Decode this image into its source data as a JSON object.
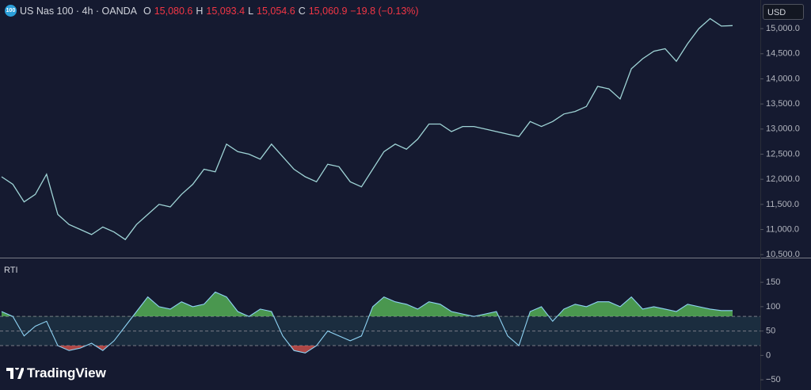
{
  "header": {
    "badge": "100",
    "symbol": "US Nas 100 · 4h · OANDA",
    "open_label": "O",
    "open": "15,080.6",
    "high_label": "H",
    "high": "15,093.4",
    "low_label": "L",
    "low": "15,054.6",
    "close_label": "C",
    "close": "15,060.9",
    "change": "−19.8 (−0.13%)",
    "currency": "USD"
  },
  "branding": {
    "logo": "TradingView"
  },
  "chart_data": [
    {
      "type": "line",
      "color": "#9fd4d6",
      "values": [
        12050,
        11900,
        11550,
        11700,
        12100,
        11300,
        11100,
        11000,
        10900,
        11050,
        10950,
        10800,
        11100,
        11300,
        11500,
        11450,
        11700,
        11900,
        12200,
        12150,
        12700,
        12550,
        12500,
        12400,
        12700,
        12450,
        12200,
        12050,
        11950,
        12300,
        12250,
        11950,
        11850,
        12200,
        12550,
        12700,
        12600,
        12800,
        13100,
        13100,
        12950,
        13050,
        13050,
        13000,
        12950,
        12900,
        12850,
        13150,
        13050,
        13150,
        13300,
        13350,
        13450,
        13850,
        13800,
        13600,
        14200,
        14400,
        14550,
        14600,
        14350,
        14700,
        15000,
        15200,
        15050,
        15060
      ],
      "ylim": [
        10440,
        15570
      ],
      "yticks": [
        {
          "value": 10500,
          "label": "10,500.0"
        },
        {
          "value": 11000,
          "label": "11,000.0"
        },
        {
          "value": 11500,
          "label": "11,500.0"
        },
        {
          "value": 12000,
          "label": "12,000.0"
        },
        {
          "value": 12500,
          "label": "12,500.0"
        },
        {
          "value": 13000,
          "label": "13,000.0"
        },
        {
          "value": 13500,
          "label": "13,500.0"
        },
        {
          "value": 14000,
          "label": "14,000.0"
        },
        {
          "value": 14500,
          "label": "14,500.0"
        },
        {
          "value": 15000,
          "label": "15,000.0"
        }
      ]
    },
    {
      "type": "oscillator",
      "title": "RTI",
      "color": "#8fd3f4",
      "upper_color": "#5cc15a",
      "lower_color": "#e0574d",
      "values": [
        90,
        80,
        40,
        60,
        70,
        20,
        10,
        15,
        25,
        10,
        30,
        60,
        90,
        120,
        100,
        95,
        110,
        100,
        105,
        130,
        120,
        90,
        80,
        95,
        90,
        40,
        10,
        5,
        20,
        50,
        40,
        30,
        40,
        100,
        120,
        110,
        105,
        95,
        110,
        105,
        90,
        85,
        80,
        85,
        90,
        40,
        20,
        90,
        100,
        70,
        95,
        105,
        100,
        110,
        110,
        100,
        120,
        95,
        100,
        95,
        90,
        105,
        100,
        95,
        92,
        92
      ],
      "bands": [
        80,
        50,
        20
      ],
      "ylim": [
        -71,
        199
      ],
      "yticks": [
        {
          "value": -50,
          "label": "−50"
        },
        0,
        50,
        100,
        150
      ]
    }
  ]
}
